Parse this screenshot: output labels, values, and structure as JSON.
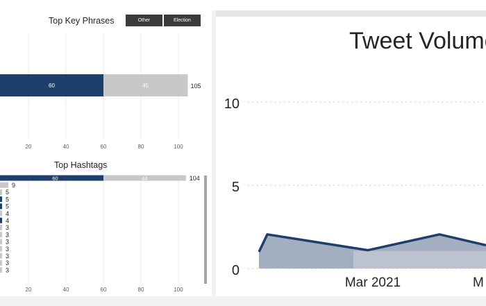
{
  "key_phrases": {
    "title": "Top Key Phrases",
    "slicer_buttons": [
      "Other",
      "Election"
    ],
    "bar": {
      "segment_values": [
        60,
        45
      ],
      "total": 105
    },
    "x_ticks": [
      20,
      40,
      60,
      80,
      100
    ],
    "x_max": 115
  },
  "hashtags": {
    "title": "Top Hashtags",
    "x_ticks": [
      20,
      40,
      60,
      80,
      100
    ],
    "x_max": 115,
    "rows": [
      {
        "a": 60,
        "b": 44,
        "total": 104,
        "label_a": "60",
        "label_b": "44"
      },
      {
        "a": 0,
        "b": 9,
        "total": 9
      },
      {
        "a": 0,
        "b": 5,
        "total": 5
      },
      {
        "a": 5,
        "b": 0,
        "total": 5
      },
      {
        "a": 5,
        "b": 0,
        "total": 5
      },
      {
        "a": 0,
        "b": 4,
        "total": 4
      },
      {
        "a": 4,
        "b": 0,
        "total": 4
      },
      {
        "a": 0,
        "b": 3,
        "total": 3
      },
      {
        "a": 0,
        "b": 3,
        "total": 3
      },
      {
        "a": 0,
        "b": 3,
        "total": 3
      },
      {
        "a": 0,
        "b": 3,
        "total": 3
      },
      {
        "a": 0,
        "b": 3,
        "total": 3
      },
      {
        "a": 0,
        "b": 3,
        "total": 3
      },
      {
        "a": 0,
        "b": 3,
        "total": 3
      }
    ]
  },
  "tweet_volume": {
    "title": "Tweet Volume",
    "y_ticks": [
      0,
      5,
      10
    ],
    "x_labels": [
      "Mar 2021",
      "M"
    ]
  },
  "colors": {
    "primary": "#1e3f6b",
    "secondary": "#c8c8c8",
    "area": "#a3afc0",
    "slicer": "#3b3b3b"
  },
  "chart_data": [
    {
      "type": "bar",
      "title": "Top Key Phrases",
      "orientation": "horizontal",
      "stacked": true,
      "series": [
        {
          "values": [
            60
          ]
        },
        {
          "values": [
            45
          ]
        }
      ],
      "totals": [
        105
      ],
      "xlim": [
        0,
        115
      ],
      "x_ticks": [
        20,
        40,
        60,
        80,
        100
      ]
    },
    {
      "type": "bar",
      "title": "Top Hashtags",
      "orientation": "horizontal",
      "stacked": true,
      "series": [
        {
          "values": [
            60,
            0,
            0,
            5,
            5,
            0,
            4,
            0,
            0,
            0,
            0,
            0,
            0,
            0
          ]
        },
        {
          "values": [
            44,
            9,
            5,
            0,
            0,
            4,
            0,
            3,
            3,
            3,
            3,
            3,
            3,
            3
          ]
        }
      ],
      "totals": [
        104,
        9,
        5,
        5,
        5,
        4,
        4,
        3,
        3,
        3,
        3,
        3,
        3,
        3
      ],
      "xlim": [
        0,
        115
      ],
      "x_ticks": [
        20,
        40,
        60,
        80,
        100
      ]
    },
    {
      "type": "area",
      "title": "Tweet Volume",
      "ylim": [
        0,
        12
      ],
      "y_ticks": [
        0,
        5,
        10
      ],
      "x_tick_labels": [
        "Mar 2021",
        "M"
      ],
      "series": [
        {
          "x": [
            0,
            1,
            2,
            3,
            4,
            5
          ],
          "values": [
            1,
            2,
            1,
            2,
            1,
            1
          ]
        }
      ]
    }
  ]
}
